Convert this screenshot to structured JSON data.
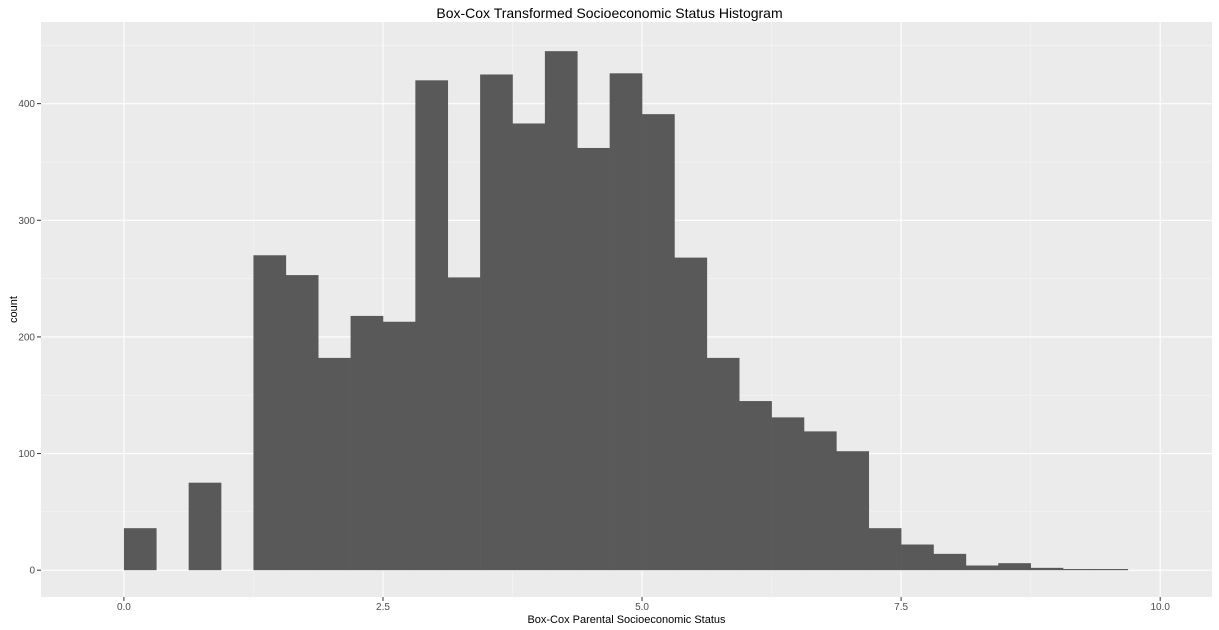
{
  "chart_data": {
    "type": "bar",
    "title": "Box-Cox Transformed Socioeconomic Status Histogram",
    "xlabel": "Box-Cox Parental Socioeconomic Status",
    "ylabel": "count",
    "xlim": [
      -0.8,
      10.5
    ],
    "ylim": [
      -23,
      470
    ],
    "x_ticks": [
      0,
      2.5,
      5,
      7.5,
      10
    ],
    "x_tick_labels": [
      "0.0",
      "2.5",
      "5.0",
      "7.5",
      "10.0"
    ],
    "y_ticks": [
      0,
      100,
      200,
      300,
      400
    ],
    "y_tick_labels": [
      "0",
      "100",
      "200",
      "300",
      "400"
    ],
    "bin_width": 0.3125,
    "bins": [
      {
        "x0": 0.0,
        "count": 36
      },
      {
        "x0": 0.3125,
        "count": 0
      },
      {
        "x0": 0.625,
        "count": 75
      },
      {
        "x0": 0.9375,
        "count": 0
      },
      {
        "x0": 1.25,
        "count": 270
      },
      {
        "x0": 1.5625,
        "count": 253
      },
      {
        "x0": 1.875,
        "count": 182
      },
      {
        "x0": 2.1875,
        "count": 218
      },
      {
        "x0": 2.5,
        "count": 213
      },
      {
        "x0": 2.8125,
        "count": 420
      },
      {
        "x0": 3.125,
        "count": 251
      },
      {
        "x0": 3.4375,
        "count": 425
      },
      {
        "x0": 3.75,
        "count": 383
      },
      {
        "x0": 4.0625,
        "count": 445
      },
      {
        "x0": 4.375,
        "count": 362
      },
      {
        "x0": 4.6875,
        "count": 426
      },
      {
        "x0": 5.0,
        "count": 391
      },
      {
        "x0": 5.3125,
        "count": 268
      },
      {
        "x0": 5.625,
        "count": 182
      },
      {
        "x0": 5.9375,
        "count": 145
      },
      {
        "x0": 6.25,
        "count": 131
      },
      {
        "x0": 6.5625,
        "count": 119
      },
      {
        "x0": 6.875,
        "count": 102
      },
      {
        "x0": 7.1875,
        "count": 36
      },
      {
        "x0": 7.5,
        "count": 22
      },
      {
        "x0": 7.8125,
        "count": 14
      },
      {
        "x0": 8.125,
        "count": 4
      },
      {
        "x0": 8.4375,
        "count": 6
      },
      {
        "x0": 8.75,
        "count": 2
      },
      {
        "x0": 9.0625,
        "count": 1
      },
      {
        "x0": 9.375,
        "count": 1
      }
    ],
    "grid": true,
    "colors": {
      "panel_background": "#ebebeb",
      "grid_major": "#ffffff",
      "grid_minor": "#f5f5f5",
      "bar_fill": "#595959",
      "tick_text": "#4d4d4d"
    }
  }
}
